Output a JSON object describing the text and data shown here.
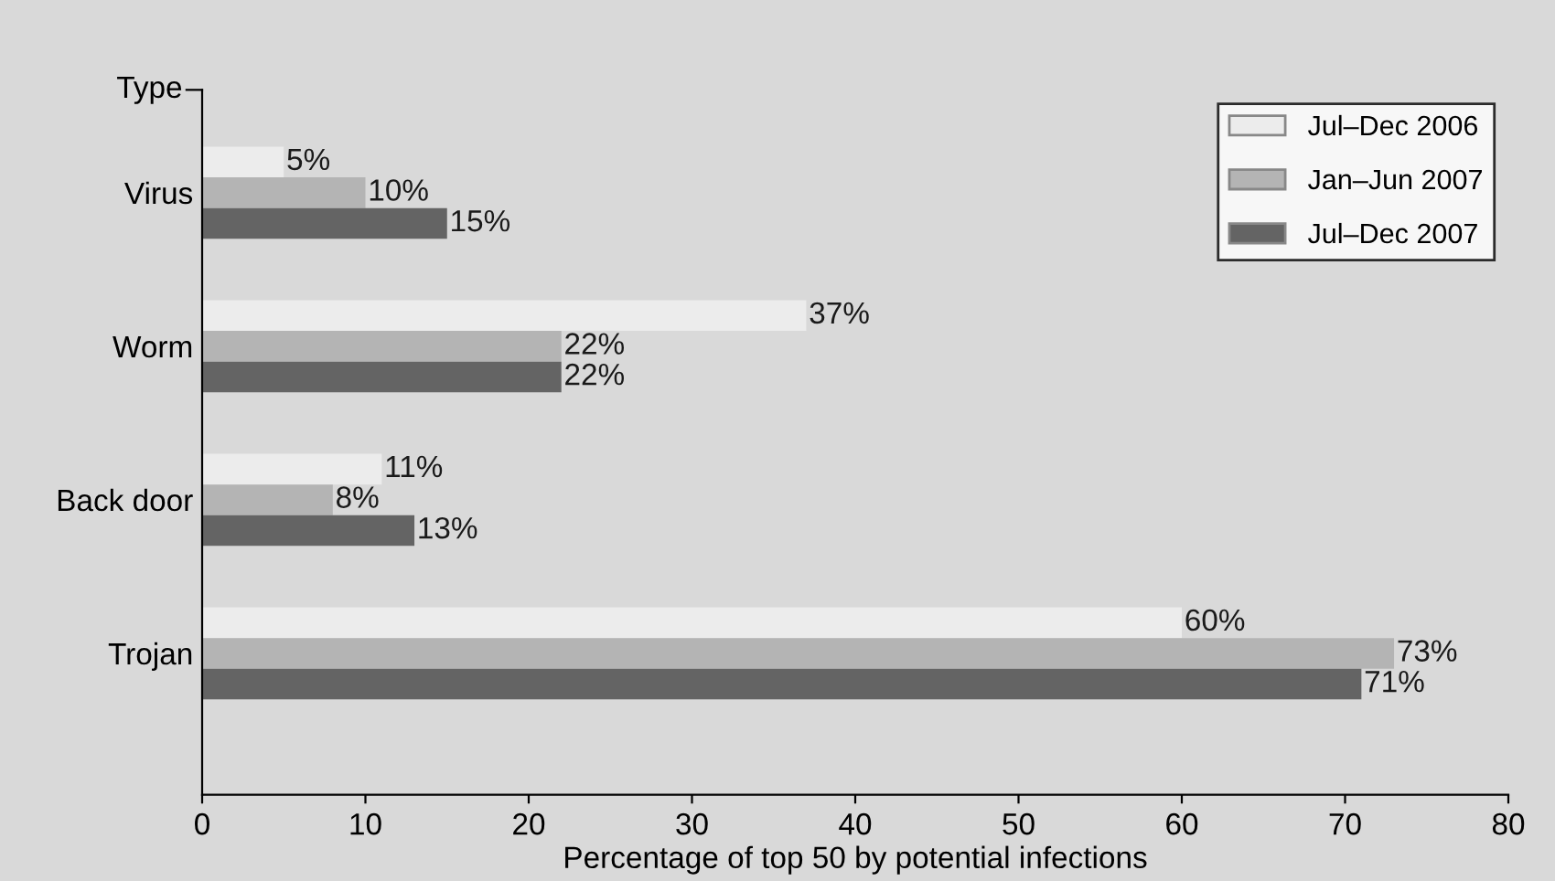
{
  "chart_data": {
    "type": "bar",
    "orientation": "horizontal",
    "xlabel": "Percentage of top 50 by potential infections",
    "ylabel": "Type",
    "categories": [
      "Virus",
      "Worm",
      "Back door",
      "Trojan"
    ],
    "series": [
      {
        "name": "Jul–Dec 2006",
        "color": "#ececec",
        "values": [
          5,
          37,
          11,
          60
        ],
        "value_labels": [
          "5%",
          "37%",
          "11%",
          "60%"
        ]
      },
      {
        "name": "Jan–Jun 2007",
        "color": "#b4b4b4",
        "values": [
          10,
          22,
          8,
          73
        ],
        "value_labels": [
          "10%",
          "22%",
          "8%",
          "73%"
        ]
      },
      {
        "name": "Jul–Dec 2007",
        "color": "#646464",
        "values": [
          15,
          22,
          13,
          71
        ],
        "value_labels": [
          "15%",
          "22%",
          "13%",
          "71%"
        ]
      }
    ],
    "xlim": [
      0,
      80
    ],
    "xticks": [
      0,
      10,
      20,
      30,
      40,
      50,
      60,
      70,
      80
    ],
    "legend": "top right",
    "grid": false
  }
}
